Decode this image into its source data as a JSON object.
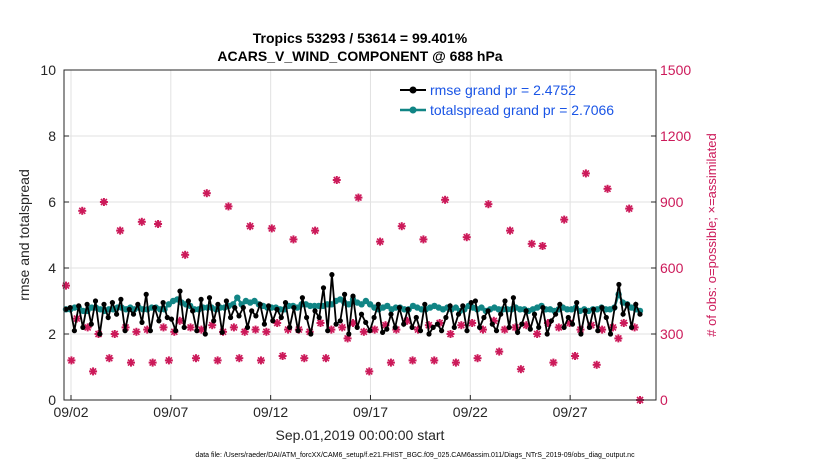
{
  "chart_data": {
    "type": "line",
    "title_line1": "Tropics 53293 / 53614 = 99.401%",
    "title_line2": "ACARS_V_WIND_COMPONENT @ 688 hPa",
    "ylabel_left": "rmse and totalspread",
    "ylabel_right": "# of obs: o=possible; ×=assimilated",
    "xlabel": "Sep.01,2019 00:00:00 start",
    "footnote": "data file: /Users/raeder/DAI/ATM_forcXX/CAM6_setup/f.e21.FHIST_BGC.f09_025.CAM6assim.011/Diags_NTrS_2019-09/obs_diag_output.nc",
    "ylim_left": [
      0,
      10
    ],
    "ylim_right": [
      0,
      1500
    ],
    "xlim_days": [
      0.65,
      30.3
    ],
    "yticks_left": [
      "0",
      "2",
      "4",
      "6",
      "8",
      "10"
    ],
    "yticks_right": [
      "0",
      "300",
      "600",
      "900",
      "1200",
      "1500"
    ],
    "xtick_days": [
      1,
      6,
      11,
      16,
      21,
      26
    ],
    "xtick_labels": [
      "09/02",
      "09/07",
      "09/12",
      "09/17",
      "09/22",
      "09/27"
    ],
    "colors": {
      "rmse": "#000000",
      "spread": "#118585",
      "obs": "#cc1a5a",
      "legend_text": "#1a55e6"
    },
    "series": [
      {
        "name": "rmse grand pr = 2.4752",
        "values": [
          2.75,
          2.8,
          2.1,
          2.85,
          2.2,
          2.9,
          2.3,
          3.0,
          2.0,
          2.9,
          2.5,
          2.95,
          2.6,
          3.05,
          2.1,
          2.75,
          2.6,
          2.9,
          2.35,
          3.2,
          2.1,
          2.8,
          2.4,
          2.95,
          2.5,
          2.45,
          2.1,
          3.3,
          2.2,
          3.0,
          2.7,
          2.1,
          3.05,
          2.0,
          3.1,
          2.4,
          2.9,
          2.05,
          3.0,
          2.5,
          2.8,
          2.55,
          2.8,
          2.2,
          2.7,
          2.55,
          2.9,
          2.3,
          2.85,
          2.4,
          2.75,
          2.5,
          2.95,
          2.2,
          2.8,
          2.1,
          3.1,
          2.5,
          2.0,
          2.7,
          2.5,
          3.4,
          2.1,
          3.8,
          2.3,
          2.4,
          3.2,
          2.0,
          3.15,
          2.2,
          2.6,
          2.35,
          2.1,
          2.5,
          2.9,
          2.05,
          2.15,
          2.6,
          2.2,
          2.8,
          2.3,
          2.75,
          2.2,
          2.5,
          2.1,
          2.9,
          2.0,
          2.2,
          2.3,
          2.1,
          2.5,
          2.85,
          2.2,
          2.6,
          2.85,
          2.1,
          2.95,
          3.0,
          2.2,
          2.5,
          2.7,
          2.3,
          2.1,
          2.6,
          3.0,
          2.2,
          3.1,
          2.05,
          2.3,
          2.7,
          2.15,
          2.6,
          2.2,
          2.8,
          2.0,
          2.4,
          2.6,
          2.9,
          2.2,
          2.5,
          2.3,
          2.95,
          2.0,
          2.7,
          2.2,
          2.75,
          2.1,
          2.8,
          2.5,
          2.0,
          2.8,
          3.5,
          2.6,
          2.9,
          2.2,
          2.9,
          2.6
        ]
      },
      {
        "name": "totalspread grand pr = 2.7066",
        "values": [
          2.75,
          2.75,
          2.8,
          2.8,
          2.7,
          2.7,
          2.8,
          2.8,
          2.75,
          2.7,
          2.75,
          2.75,
          2.8,
          2.8,
          2.75,
          2.8,
          2.75,
          2.8,
          2.75,
          2.75,
          2.8,
          2.8,
          2.75,
          2.75,
          2.9,
          3.0,
          3.05,
          2.95,
          2.9,
          2.85,
          2.75,
          2.75,
          2.8,
          2.8,
          2.8,
          2.75,
          2.8,
          2.8,
          2.85,
          2.9,
          3.1,
          2.9,
          3.0,
          2.95,
          3.0,
          2.9,
          2.85,
          2.8,
          2.8,
          2.8,
          2.75,
          2.75,
          2.85,
          2.85,
          2.8,
          2.9,
          2.9,
          2.85,
          2.85,
          2.85,
          2.85,
          2.9,
          2.9,
          3.0,
          3.05,
          2.95,
          2.9,
          3.05,
          2.95,
          2.9,
          3.0,
          2.9,
          2.8,
          2.75,
          2.8,
          2.85,
          2.75,
          2.8,
          2.8,
          2.75,
          2.75,
          2.85,
          2.8,
          2.75,
          2.75,
          2.8,
          2.85,
          2.8,
          2.75,
          2.8,
          2.75,
          2.8,
          2.7,
          2.75,
          2.85,
          2.8,
          2.75,
          2.8,
          2.7,
          2.75,
          2.8,
          2.75,
          2.75,
          2.75,
          2.75,
          2.8,
          2.75,
          2.75,
          2.7,
          2.75,
          2.8,
          2.85,
          2.75,
          2.75,
          2.7,
          2.75,
          2.8,
          2.75,
          2.75,
          2.8,
          2.7,
          2.75,
          2.7,
          2.75,
          2.75,
          2.8,
          2.75,
          2.75,
          2.8,
          3.2,
          2.95,
          2.9,
          2.8,
          2.75,
          2.7
        ]
      },
      {
        "name": "# of obs possible / assimilated",
        "values": [
          520,
          180,
          370,
          860,
          330,
          130,
          300,
          900,
          190,
          300,
          770,
          330,
          170,
          310,
          810,
          320,
          170,
          800,
          330,
          180,
          310,
          360,
          660,
          330,
          190,
          320,
          940,
          340,
          180,
          310,
          880,
          330,
          190,
          310,
          790,
          320,
          180,
          310,
          780,
          350,
          200,
          320,
          730,
          320,
          190,
          310,
          770,
          350,
          190,
          320,
          1000,
          330,
          280,
          350,
          920,
          310,
          130,
          320,
          720,
          340,
          170,
          320,
          790,
          360,
          180,
          320,
          730,
          340,
          180,
          350,
          910,
          300,
          170,
          340,
          740,
          350,
          190,
          320,
          890,
          360,
          220,
          320,
          770,
          330,
          140,
          340,
          710,
          300,
          700,
          350,
          170,
          330,
          820,
          350,
          200,
          320,
          1030,
          340,
          160,
          320,
          960,
          330,
          280,
          350,
          870,
          330,
          0
        ]
      }
    ],
    "legend": {
      "rmse_label": "rmse grand pr = 2.4752",
      "spread_label": "totalspread grand pr = 2.7066",
      "position": "top-right"
    }
  }
}
